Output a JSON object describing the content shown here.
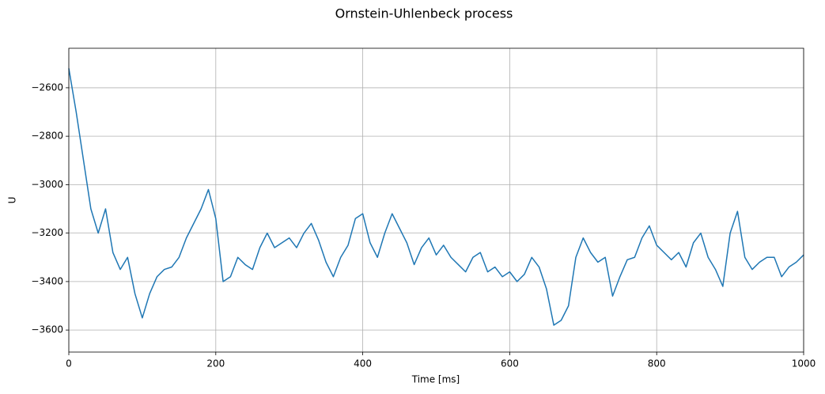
{
  "chart_data": {
    "type": "line",
    "title": "Ornstein-Uhlenbeck process",
    "xlabel": "Time [ms]",
    "ylabel": "U",
    "x": [
      0,
      10,
      20,
      30,
      40,
      50,
      60,
      70,
      80,
      90,
      100,
      110,
      120,
      130,
      140,
      150,
      160,
      170,
      180,
      190,
      200,
      210,
      220,
      230,
      240,
      250,
      260,
      270,
      280,
      290,
      300,
      310,
      320,
      330,
      340,
      350,
      360,
      370,
      380,
      390,
      400,
      410,
      420,
      430,
      440,
      450,
      460,
      470,
      480,
      490,
      500,
      510,
      520,
      530,
      540,
      550,
      560,
      570,
      580,
      590,
      600,
      610,
      620,
      630,
      640,
      650,
      660,
      670,
      680,
      690,
      700,
      710,
      720,
      730,
      740,
      750,
      760,
      770,
      780,
      790,
      800,
      810,
      820,
      830,
      840,
      850,
      860,
      870,
      880,
      890,
      900,
      910,
      920,
      930,
      940,
      950,
      960,
      970,
      980,
      990,
      1000
    ],
    "series": [
      {
        "name": "U",
        "color": "#1f77b4",
        "values": [
          -2520,
          -2700,
          -2900,
          -3100,
          -3200,
          -3100,
          -3280,
          -3350,
          -3300,
          -3450,
          -3550,
          -3450,
          -3380,
          -3350,
          -3340,
          -3300,
          -3220,
          -3160,
          -3100,
          -3020,
          -3140,
          -3400,
          -3380,
          -3300,
          -3330,
          -3350,
          -3260,
          -3200,
          -3260,
          -3240,
          -3220,
          -3260,
          -3200,
          -3160,
          -3230,
          -3320,
          -3380,
          -3300,
          -3250,
          -3140,
          -3120,
          -3240,
          -3300,
          -3200,
          -3120,
          -3180,
          -3240,
          -3330,
          -3260,
          -3220,
          -3290,
          -3250,
          -3300,
          -3330,
          -3360,
          -3300,
          -3280,
          -3360,
          -3340,
          -3380,
          -3360,
          -3400,
          -3370,
          -3300,
          -3340,
          -3430,
          -3580,
          -3560,
          -3500,
          -3300,
          -3220,
          -3280,
          -3320,
          -3300,
          -3460,
          -3380,
          -3310,
          -3300,
          -3220,
          -3170,
          -3250,
          -3280,
          -3310,
          -3280,
          -3340,
          -3240,
          -3200,
          -3300,
          -3350,
          -3420,
          -3200,
          -3110,
          -3300,
          -3350,
          -3320,
          -3300,
          -3300,
          -3380,
          -3340,
          -3320,
          -3290
        ]
      }
    ],
    "xlim": [
      0,
      1000
    ],
    "xticks": [
      0,
      200,
      400,
      600,
      800,
      1000
    ],
    "ylim": [
      -3691,
      -2437
    ],
    "yticks": [
      {
        "value": -3600,
        "label": "−3600"
      },
      {
        "value": -3400,
        "label": "−3400"
      },
      {
        "value": -3200,
        "label": "−3200"
      },
      {
        "value": -3000,
        "label": "−3000"
      },
      {
        "value": -2800,
        "label": "−2800"
      },
      {
        "value": -2600,
        "label": "−2600"
      }
    ],
    "grid": true
  }
}
